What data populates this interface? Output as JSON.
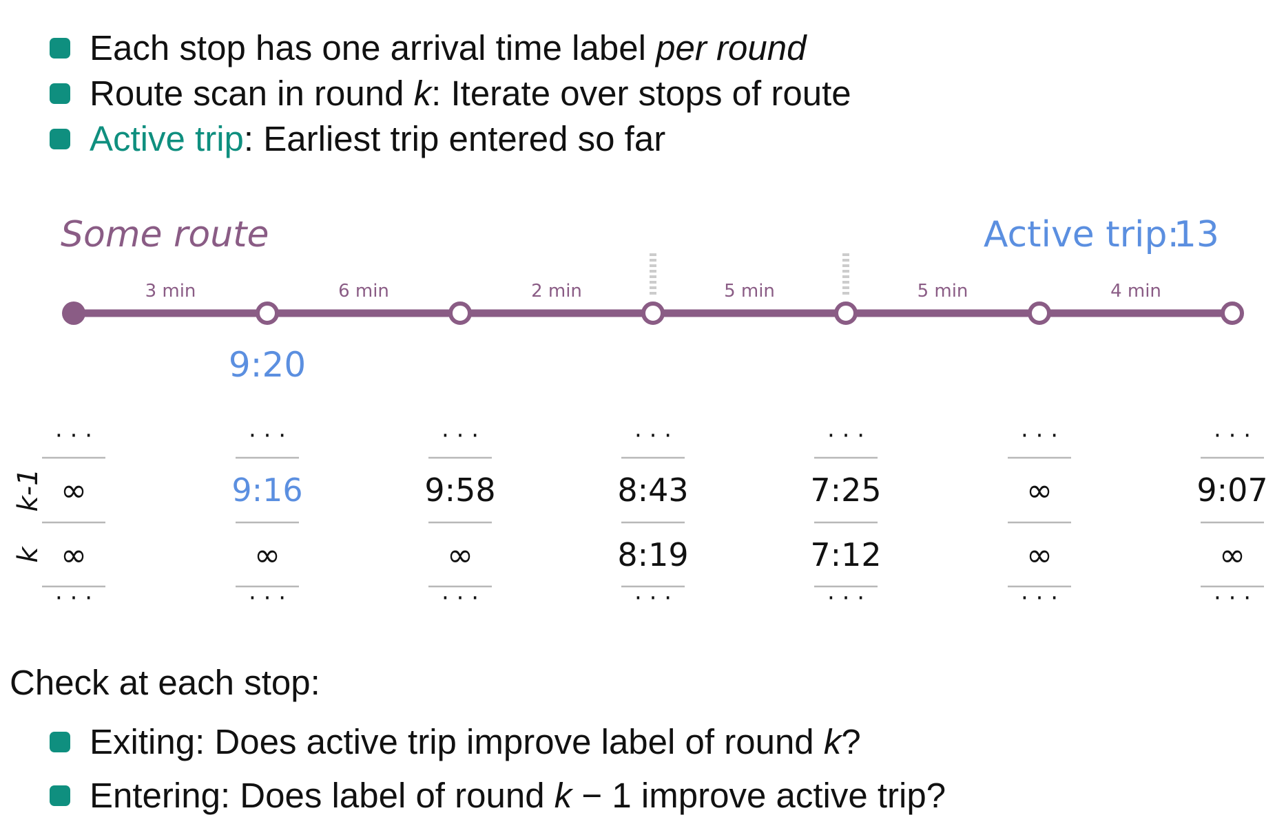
{
  "bullets_top": [
    {
      "text": "Each stop has one arrival time label ",
      "emph": "per round",
      "after": ""
    },
    {
      "text": "Route scan in round ",
      "emph": "k",
      "after": ": Iterate over stops of route"
    },
    {
      "highlight": "Active trip",
      "after": ": Earliest trip entered so far"
    }
  ],
  "route": {
    "name": "Some route",
    "active_trip_label": "Active trip:",
    "active_trip_value": "13",
    "segment_times": [
      "3 min",
      "6 min",
      "2 min",
      "5 min",
      "5 min",
      "4 min"
    ],
    "active_time": "9:20"
  },
  "labels": {
    "row_names": [
      "k-1",
      "k"
    ],
    "ellipsis": "· · ·",
    "k_minus_1": [
      "∞",
      "9:16",
      "9:58",
      "8:43",
      "7:25",
      "∞",
      "9:07"
    ],
    "k": [
      "∞",
      "∞",
      "∞",
      "8:19",
      "7:12",
      "∞",
      "∞"
    ]
  },
  "check_heading": "Check at each stop:",
  "bullets_bottom": [
    {
      "text": "Exiting: Does active trip improve label of round ",
      "emph": "k",
      "after": "?"
    },
    {
      "text": "Entering: Does label of round ",
      "emph": "k",
      "after": " − 1 improve active trip?"
    }
  ],
  "colors": {
    "route": "#8a5c85",
    "teal": "#0f8f7f",
    "blue": "#5b8fe0",
    "rule": "#b8b8b8",
    "dashed": "#cccccc"
  }
}
